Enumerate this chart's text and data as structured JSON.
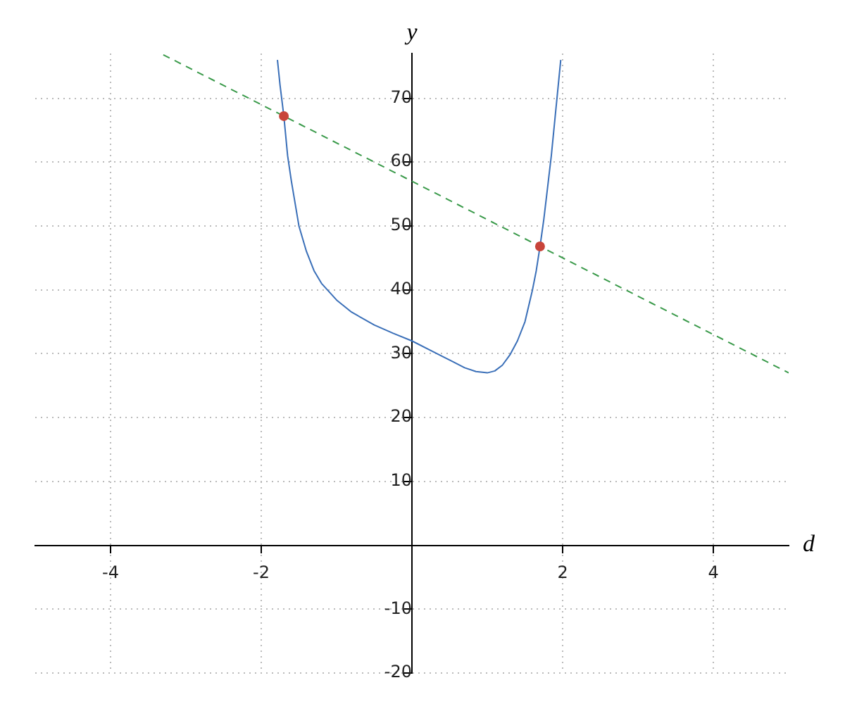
{
  "chart_data": {
    "type": "line",
    "xlabel": "d",
    "ylabel": "y",
    "xlim": [
      -5,
      5
    ],
    "ylim": [
      -20,
      77
    ],
    "xticks": [
      -4,
      -2,
      2,
      4
    ],
    "yticks": [
      -20,
      -10,
      10,
      20,
      30,
      40,
      50,
      60,
      70
    ],
    "grid": true,
    "legend": false,
    "series": [
      {
        "color": "#3a6fb8",
        "marker": "none",
        "line_style": "solid",
        "x": [
          -1.785,
          -1.75,
          -1.7,
          -1.65,
          -1.6,
          -1.5,
          -1.4,
          -1.3,
          -1.2,
          -1,
          -0.8,
          -0.5,
          -0.25,
          0,
          0.25,
          0.5,
          0.7,
          0.85,
          1,
          1.1,
          1.2,
          1.3,
          1.4,
          1.5,
          1.6,
          1.65,
          1.7,
          1.75,
          1.8,
          1.85,
          1.9,
          1.95,
          1.975
        ],
        "values": [
          76,
          72,
          67.2,
          61,
          57,
          50,
          46,
          43,
          41,
          38.4,
          36.5,
          34.5,
          33.2,
          32,
          30.5,
          29,
          27.8,
          27.2,
          27,
          27.3,
          28.2,
          29.8,
          32,
          35,
          40,
          43,
          46.8,
          51,
          56,
          61,
          67,
          73,
          76
        ]
      },
      {
        "color": "#3a9a4a",
        "marker": "none",
        "line_style": "dashed",
        "x": [
          -3.3,
          5
        ],
        "values": [
          76.8,
          27
        ]
      },
      {
        "type": "scatter",
        "color": "#c8443a",
        "marker": "circle",
        "x": [
          -1.7,
          1.7
        ],
        "values": [
          67.2,
          46.8
        ]
      }
    ]
  }
}
